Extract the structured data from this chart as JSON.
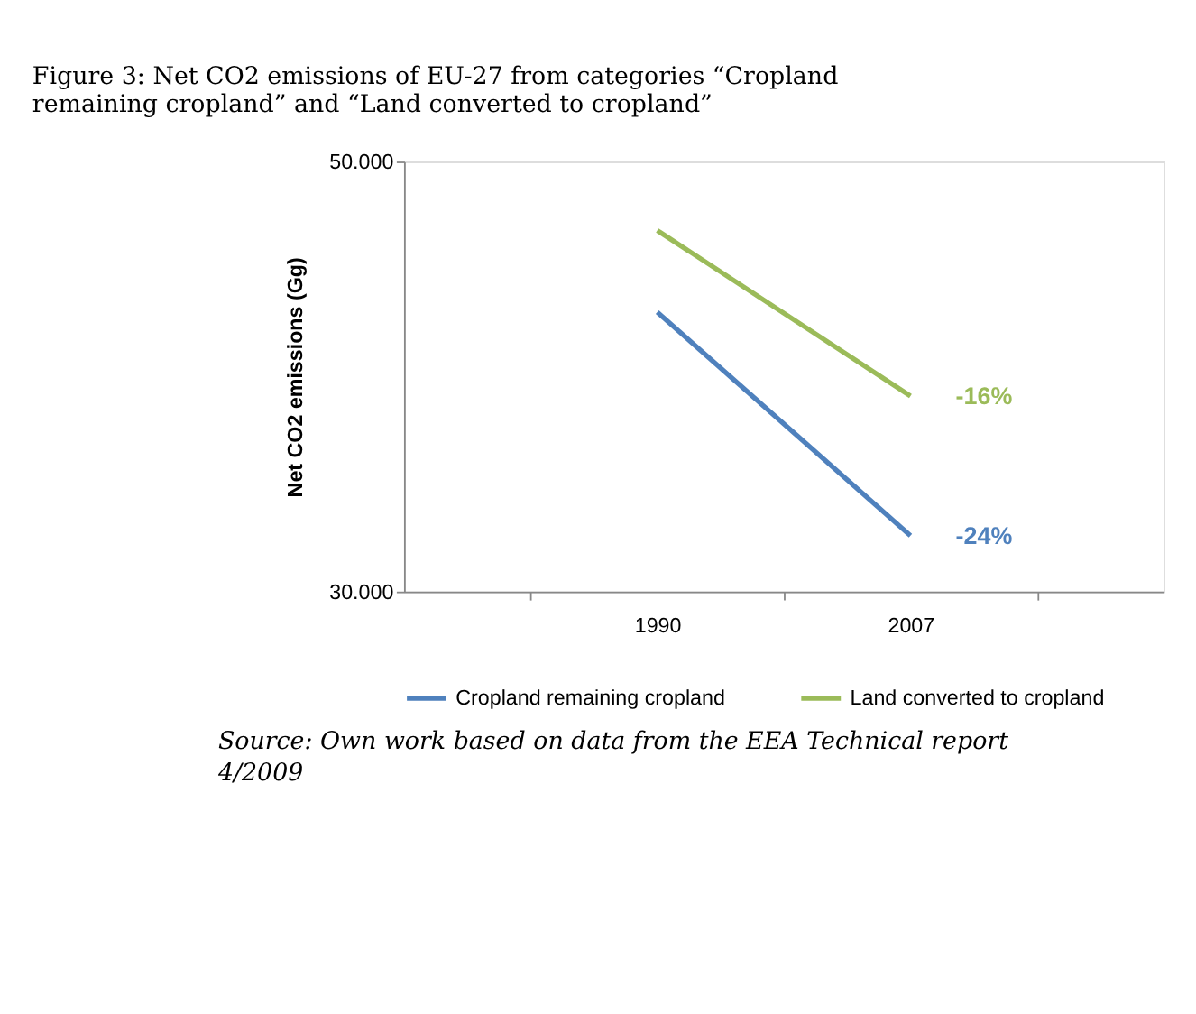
{
  "chart_data": {
    "type": "line",
    "title": "Figure 3: Net CO2 emissions of EU-27 from categories “Cropland remaining cropland” and “Land converted to cropland”",
    "ylabel": "Net CO2 emissions (Gg)",
    "categories": [
      "1990",
      "2007"
    ],
    "series": [
      {
        "name": "Cropland remaining cropland",
        "color": "#4f81bd",
        "values": [
          43.0,
          32.6
        ]
      },
      {
        "name": "Land converted to cropland",
        "color": "#9bbb59",
        "values": [
          46.8,
          39.1
        ]
      }
    ],
    "ylim": [
      30,
      50
    ],
    "yticks": [
      {
        "value": 50,
        "label": "50.000"
      },
      {
        "value": 30,
        "label": "30.000"
      }
    ],
    "annotations": [
      {
        "text": "-24%",
        "x": "2007",
        "y": 32.6
      },
      {
        "text": "-16%",
        "x": "2007",
        "y": 39.1
      },
      "Source: Own work based on data from the EEA Technical report 4/2009"
    ],
    "grid": false,
    "legend": "bottom",
    "marker": "none",
    "line_style": "solid"
  }
}
